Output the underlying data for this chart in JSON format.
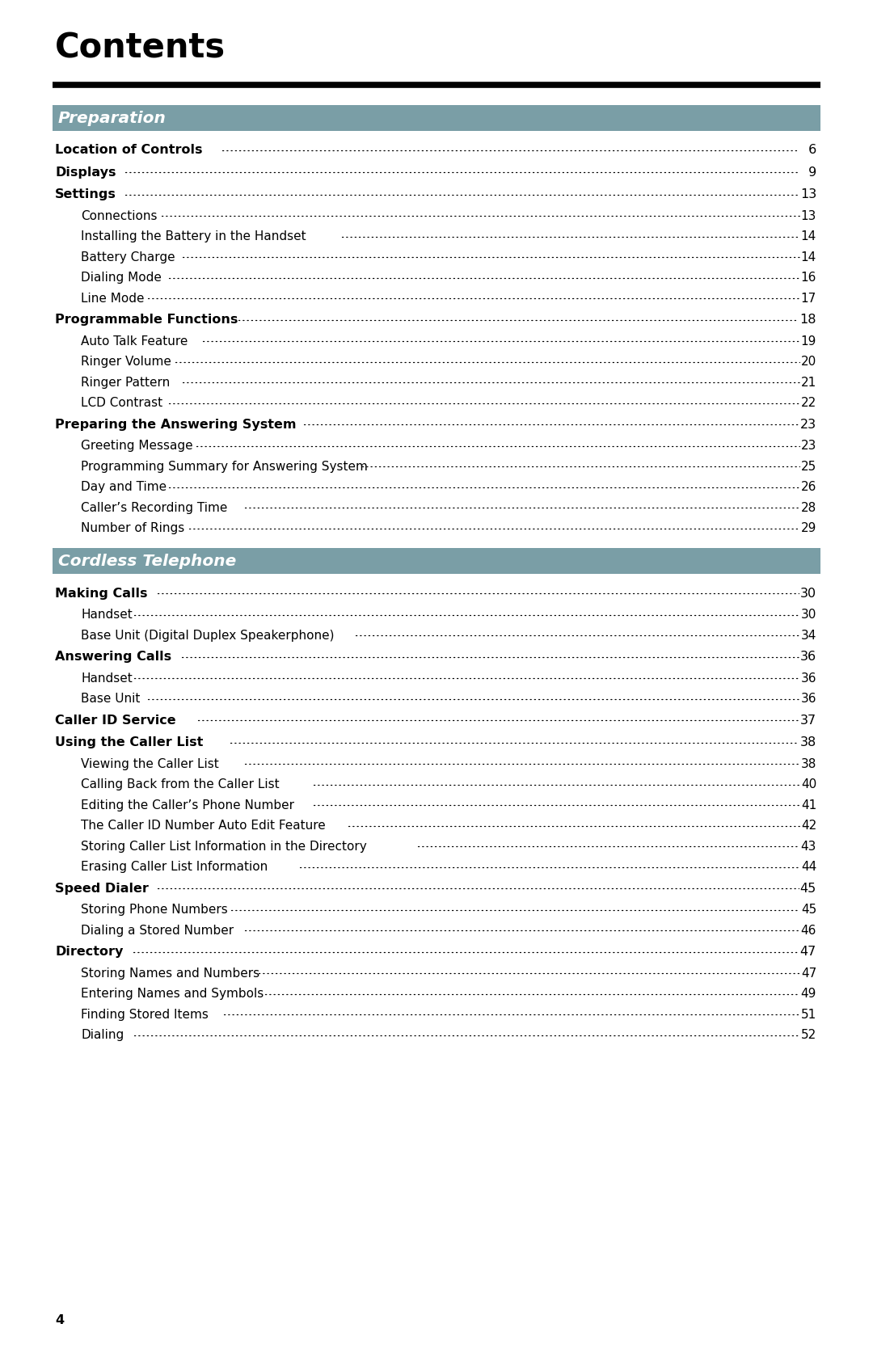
{
  "title": "Contents",
  "title_fontsize": 32,
  "background_color": "#ffffff",
  "header_bg_color": "#7a9ea6",
  "header_text_color": "#ffffff",
  "sections": [
    {
      "type": "header",
      "text": "Preparation"
    },
    {
      "type": "entry",
      "level": 0,
      "bold": true,
      "text": "Location of Controls",
      "page": " 6"
    },
    {
      "type": "entry",
      "level": 0,
      "bold": true,
      "text": "Displays",
      "page": " 9"
    },
    {
      "type": "entry",
      "level": 0,
      "bold": true,
      "text": "Settings",
      "page": "13"
    },
    {
      "type": "entry",
      "level": 1,
      "bold": false,
      "text": "Connections",
      "page": "13"
    },
    {
      "type": "entry",
      "level": 1,
      "bold": false,
      "text": "Installing the Battery in the Handset",
      "page": "14"
    },
    {
      "type": "entry",
      "level": 1,
      "bold": false,
      "text": "Battery Charge",
      "page": "14"
    },
    {
      "type": "entry",
      "level": 1,
      "bold": false,
      "text": "Dialing Mode",
      "page": "16"
    },
    {
      "type": "entry",
      "level": 1,
      "bold": false,
      "text": "Line Mode",
      "page": "17"
    },
    {
      "type": "entry",
      "level": 0,
      "bold": true,
      "text": "Programmable Functions",
      "page": "18"
    },
    {
      "type": "entry",
      "level": 1,
      "bold": false,
      "text": "Auto Talk Feature",
      "page": "19"
    },
    {
      "type": "entry",
      "level": 1,
      "bold": false,
      "text": "Ringer Volume",
      "page": "20"
    },
    {
      "type": "entry",
      "level": 1,
      "bold": false,
      "text": "Ringer Pattern",
      "page": "21"
    },
    {
      "type": "entry",
      "level": 1,
      "bold": false,
      "text": "LCD Contrast",
      "page": "22"
    },
    {
      "type": "entry",
      "level": 0,
      "bold": true,
      "text": "Preparing the Answering System",
      "page": "23"
    },
    {
      "type": "entry",
      "level": 1,
      "bold": false,
      "text": "Greeting Message",
      "page": "23"
    },
    {
      "type": "entry",
      "level": 1,
      "bold": false,
      "text": "Programming Summary for Answering System",
      "page": "25"
    },
    {
      "type": "entry",
      "level": 1,
      "bold": false,
      "text": "Day and Time",
      "page": "26"
    },
    {
      "type": "entry",
      "level": 1,
      "bold": false,
      "text": "Caller’s Recording Time",
      "page": "28"
    },
    {
      "type": "entry",
      "level": 1,
      "bold": false,
      "text": "Number of Rings",
      "page": "29"
    },
    {
      "type": "header",
      "text": "Cordless Telephone"
    },
    {
      "type": "entry",
      "level": 0,
      "bold": true,
      "text": "Making Calls",
      "page": "30"
    },
    {
      "type": "entry",
      "level": 1,
      "bold": false,
      "text": "Handset",
      "page": "30"
    },
    {
      "type": "entry",
      "level": 1,
      "bold": false,
      "text": "Base Unit (Digital Duplex Speakerphone)",
      "page": "34"
    },
    {
      "type": "entry",
      "level": 0,
      "bold": true,
      "text": "Answering Calls",
      "page": "36"
    },
    {
      "type": "entry",
      "level": 1,
      "bold": false,
      "text": "Handset",
      "page": "36"
    },
    {
      "type": "entry",
      "level": 1,
      "bold": false,
      "text": "Base Unit",
      "page": "36"
    },
    {
      "type": "entry",
      "level": 0,
      "bold": true,
      "text": "Caller ID Service",
      "page": "37"
    },
    {
      "type": "entry",
      "level": 0,
      "bold": true,
      "text": "Using the Caller List",
      "page": "38"
    },
    {
      "type": "entry",
      "level": 1,
      "bold": false,
      "text": "Viewing the Caller List",
      "page": "38"
    },
    {
      "type": "entry",
      "level": 1,
      "bold": false,
      "text": "Calling Back from the Caller List",
      "page": "40"
    },
    {
      "type": "entry",
      "level": 1,
      "bold": false,
      "text": "Editing the Caller’s Phone Number",
      "page": "41"
    },
    {
      "type": "entry",
      "level": 1,
      "bold": false,
      "text": "The Caller ID Number Auto Edit Feature",
      "page": "42"
    },
    {
      "type": "entry",
      "level": 1,
      "bold": false,
      "text": "Storing Caller List Information in the Directory",
      "page": "43"
    },
    {
      "type": "entry",
      "level": 1,
      "bold": false,
      "text": "Erasing Caller List Information",
      "page": "44"
    },
    {
      "type": "entry",
      "level": 0,
      "bold": true,
      "text": "Speed Dialer",
      "page": "45"
    },
    {
      "type": "entry",
      "level": 1,
      "bold": false,
      "text": "Storing Phone Numbers",
      "page": "45"
    },
    {
      "type": "entry",
      "level": 1,
      "bold": false,
      "text": "Dialing a Stored Number",
      "page": "46"
    },
    {
      "type": "entry",
      "level": 0,
      "bold": true,
      "text": "Directory",
      "page": "47"
    },
    {
      "type": "entry",
      "level": 1,
      "bold": false,
      "text": "Storing Names and Numbers",
      "page": "47"
    },
    {
      "type": "entry",
      "level": 1,
      "bold": false,
      "text": "Entering Names and Symbols",
      "page": "49"
    },
    {
      "type": "entry",
      "level": 1,
      "bold": false,
      "text": "Finding Stored Items",
      "page": "51"
    },
    {
      "type": "entry",
      "level": 1,
      "bold": false,
      "text": "Dialing",
      "page": "52"
    }
  ],
  "footer_text": "4"
}
